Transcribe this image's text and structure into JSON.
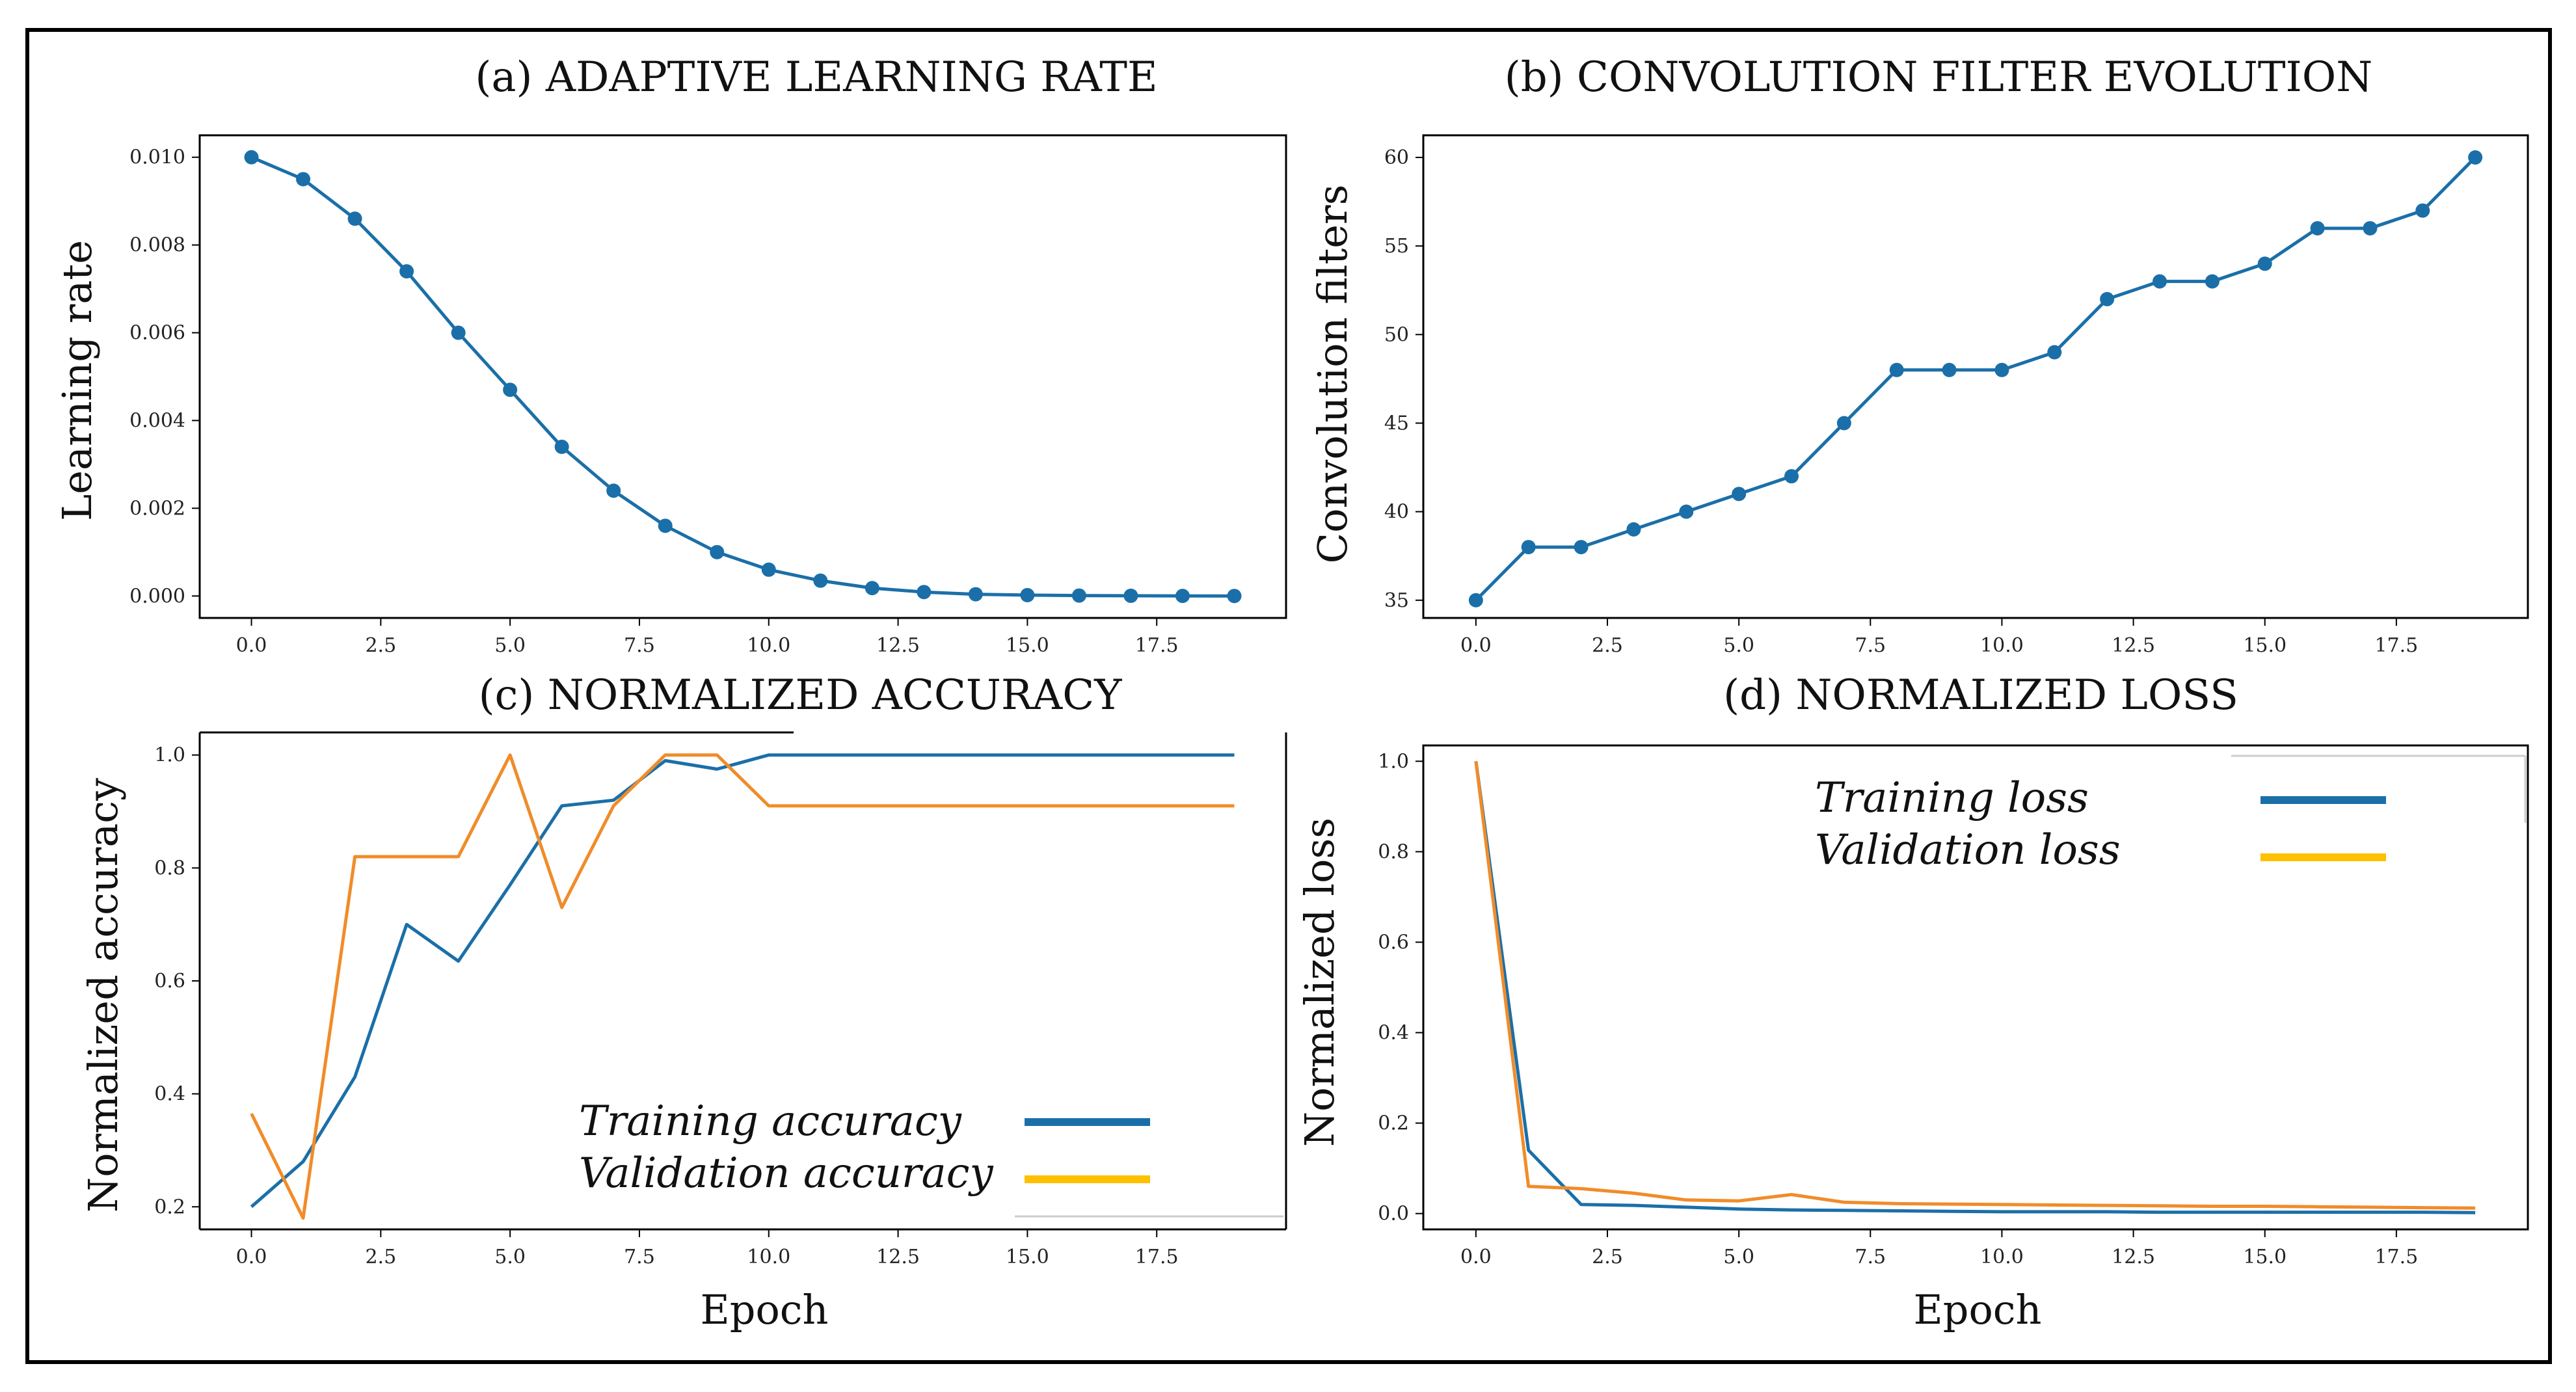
{
  "colors": {
    "blue": "#1b6fa8",
    "orange": "#f08c2a",
    "legend_orange": "#ffc000",
    "frame": "#000000"
  },
  "chart_data": [
    {
      "id": "a",
      "type": "line",
      "title": "(a) ADAPTIVE LEARNING RATE",
      "xlabel": "",
      "ylabel": "Learning rate",
      "xlim": [
        -1.0,
        20.0
      ],
      "ylim": [
        -0.0005,
        0.0105
      ],
      "xticks": [
        0,
        2.5,
        5,
        7.5,
        10,
        12.5,
        15,
        17.5
      ],
      "xtick_labels": [
        "0.0",
        "2.5",
        "5.0",
        "7.5",
        "10.0",
        "12.5",
        "15.0",
        "17.5"
      ],
      "yticks": [
        0,
        0.002,
        0.004,
        0.006,
        0.008,
        0.01
      ],
      "ytick_labels": [
        "0.000",
        "0.002",
        "0.004",
        "0.006",
        "0.008",
        "0.010"
      ],
      "markers": true,
      "series": [
        {
          "name": "Learning rate",
          "x": [
            0,
            1,
            2,
            3,
            4,
            5,
            6,
            7,
            8,
            9,
            10,
            11,
            12,
            13,
            14,
            15,
            16,
            17,
            18,
            19
          ],
          "values": [
            0.01,
            0.0095,
            0.0086,
            0.0074,
            0.006,
            0.0047,
            0.0034,
            0.0024,
            0.0016,
            0.001,
            0.0006,
            0.00035,
            0.00018,
            9e-05,
            4e-05,
            2e-05,
            1e-05,
            5e-06,
            2e-06,
            1e-06
          ]
        }
      ]
    },
    {
      "id": "b",
      "type": "line",
      "title": "(b) CONVOLUTION FILTER EVOLUTION",
      "xlabel": "",
      "ylabel": "Convolution filters",
      "xlim": [
        -1.0,
        20.0
      ],
      "ylim": [
        34.0,
        61.25
      ],
      "xticks": [
        0,
        2.5,
        5,
        7.5,
        10,
        12.5,
        15,
        17.5
      ],
      "xtick_labels": [
        "0.0",
        "2.5",
        "5.0",
        "7.5",
        "10.0",
        "12.5",
        "15.0",
        "17.5"
      ],
      "yticks": [
        35,
        40,
        45,
        50,
        55,
        60
      ],
      "ytick_labels": [
        "35",
        "40",
        "45",
        "50",
        "55",
        "60"
      ],
      "markers": true,
      "series": [
        {
          "name": "Convolution filters",
          "x": [
            0,
            1,
            2,
            3,
            4,
            5,
            6,
            7,
            8,
            9,
            10,
            11,
            12,
            13,
            14,
            15,
            16,
            17,
            18,
            19
          ],
          "values": [
            35,
            38,
            38,
            39,
            40,
            41,
            42,
            45,
            48,
            48,
            48,
            49,
            52,
            53,
            53,
            54,
            56,
            56,
            57,
            60
          ]
        }
      ]
    },
    {
      "id": "c",
      "type": "line",
      "title": "(c) NORMALIZED ACCURACY",
      "xlabel": "Epoch",
      "ylabel": "Normalized accuracy",
      "xlim": [
        -1.0,
        20.0
      ],
      "ylim": [
        0.16,
        1.04
      ],
      "xticks": [
        0,
        2.5,
        5,
        7.5,
        10,
        12.5,
        15,
        17.5
      ],
      "xtick_labels": [
        "0.0",
        "2.5",
        "5.0",
        "7.5",
        "10.0",
        "12.5",
        "15.0",
        "17.5"
      ],
      "yticks": [
        0.2,
        0.4,
        0.6,
        0.8,
        1.0
      ],
      "ytick_labels": [
        "0.2",
        "0.4",
        "0.6",
        "0.8",
        "1.0"
      ],
      "markers": false,
      "legend_position": "lower-right",
      "series": [
        {
          "name": "Training accuracy",
          "color": "blue",
          "x": [
            0,
            1,
            2,
            3,
            4,
            5,
            6,
            7,
            8,
            9,
            10,
            11,
            12,
            13,
            14,
            15,
            16,
            17,
            18,
            19
          ],
          "values": [
            0.2,
            0.28,
            0.43,
            0.7,
            0.635,
            0.77,
            0.91,
            0.92,
            0.99,
            0.975,
            1.0,
            1.0,
            1.0,
            1.0,
            1.0,
            1.0,
            1.0,
            1.0,
            1.0,
            1.0
          ]
        },
        {
          "name": "Validation accuracy",
          "color": "orange",
          "x": [
            0,
            1,
            2,
            3,
            4,
            5,
            6,
            7,
            8,
            9,
            10,
            11,
            12,
            13,
            14,
            15,
            16,
            17,
            18,
            19
          ],
          "values": [
            0.365,
            0.18,
            0.82,
            0.82,
            0.82,
            1.0,
            0.73,
            0.91,
            1.0,
            1.0,
            0.91,
            0.91,
            0.91,
            0.91,
            0.91,
            0.91,
            0.91,
            0.91,
            0.91,
            0.91
          ]
        }
      ]
    },
    {
      "id": "d",
      "type": "line",
      "title": "(d) NORMALIZED LOSS",
      "xlabel": "Epoch",
      "ylabel": "Normalized loss",
      "xlim": [
        -1.0,
        20.0
      ],
      "ylim": [
        -0.035,
        1.035
      ],
      "xticks": [
        0,
        2.5,
        5,
        7.5,
        10,
        12.5,
        15,
        17.5
      ],
      "xtick_labels": [
        "0.0",
        "2.5",
        "5.0",
        "7.5",
        "10.0",
        "12.5",
        "15.0",
        "17.5"
      ],
      "yticks": [
        0.0,
        0.2,
        0.4,
        0.6,
        0.8,
        1.0
      ],
      "ytick_labels": [
        "0.0",
        "0.2",
        "0.4",
        "0.6",
        "0.8",
        "1.0"
      ],
      "markers": false,
      "legend_position": "upper-right",
      "series": [
        {
          "name": "Training loss",
          "color": "blue",
          "x": [
            0,
            1,
            2,
            3,
            4,
            5,
            6,
            7,
            8,
            9,
            10,
            11,
            12,
            13,
            14,
            15,
            16,
            17,
            18,
            19
          ],
          "values": [
            1.0,
            0.14,
            0.02,
            0.018,
            0.014,
            0.01,
            0.008,
            0.007,
            0.006,
            0.005,
            0.004,
            0.004,
            0.004,
            0.003,
            0.003,
            0.003,
            0.003,
            0.003,
            0.003,
            0.002
          ]
        },
        {
          "name": "Validation loss",
          "color": "orange",
          "x": [
            0,
            1,
            2,
            3,
            4,
            5,
            6,
            7,
            8,
            9,
            10,
            11,
            12,
            13,
            14,
            15,
            16,
            17,
            18,
            19
          ],
          "values": [
            1.0,
            0.06,
            0.055,
            0.045,
            0.03,
            0.028,
            0.042,
            0.025,
            0.022,
            0.021,
            0.02,
            0.019,
            0.018,
            0.017,
            0.016,
            0.016,
            0.015,
            0.014,
            0.013,
            0.012
          ]
        }
      ]
    }
  ]
}
